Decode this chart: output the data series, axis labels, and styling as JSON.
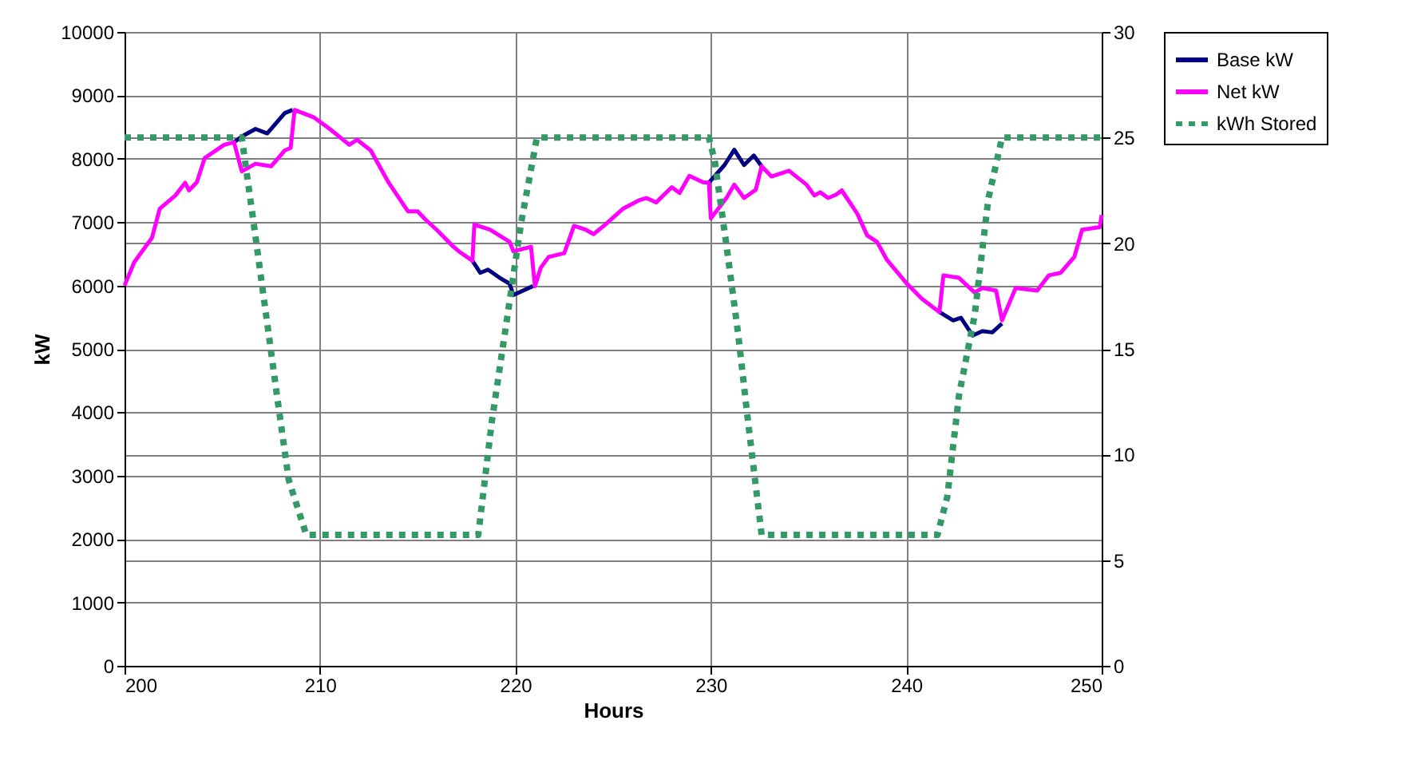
{
  "chart_data": {
    "type": "line",
    "xlabel": "Hours",
    "ylabel": "kW",
    "xlim": [
      200,
      250
    ],
    "xticks": [
      200,
      210,
      220,
      230,
      240,
      250
    ],
    "ylim": [
      0,
      10000
    ],
    "yticks": [
      0,
      1000,
      2000,
      3000,
      4000,
      5000,
      6000,
      7000,
      8000,
      9000,
      10000
    ],
    "y2lim": [
      0,
      30
    ],
    "y2ticks": [
      0,
      5,
      10,
      15,
      20,
      25,
      30
    ],
    "grid": true,
    "legend": "right",
    "marker": "none",
    "series": [
      {
        "name": "Base kW",
        "color": "#000080",
        "line_style": "solid",
        "x": [
          205.6,
          206,
          206.7,
          207.3,
          208.2,
          208.6,
          213,
          217.8,
          218.2,
          218.6,
          219.2,
          219.7,
          219.9,
          220.9,
          225,
          229.9,
          230.7,
          231.2,
          231.7,
          232.2,
          232.6,
          237,
          241.7,
          242.4,
          242.8,
          243.4,
          243.9,
          244.4,
          244.9
        ],
        "values": [
          8260,
          8350,
          8470,
          8400,
          8720,
          8770,
          null,
          6390,
          6200,
          6250,
          6120,
          6030,
          5850,
          5990,
          null,
          7620,
          7900,
          8140,
          7900,
          8050,
          7880,
          null,
          5580,
          5450,
          5490,
          5210,
          5280,
          5260,
          5400
        ]
      },
      {
        "name": "Net kW",
        "color": "#ff00ff",
        "line_style": "solid",
        "x": [
          200,
          200.5,
          201.4,
          201.8,
          202.6,
          203.1,
          203.3,
          203.7,
          204.1,
          205.1,
          205.6,
          206,
          206.7,
          207.5,
          208.2,
          208.5,
          208.7,
          209.7,
          210.5,
          211.5,
          211.9,
          212.6,
          213.5,
          214.5,
          215,
          215.4,
          216,
          216.8,
          217.1,
          217.8,
          217.9,
          218.7,
          219.7,
          219.9,
          220.8,
          221,
          221.3,
          221.7,
          222.5,
          223,
          223.6,
          224,
          224.6,
          225.5,
          226.3,
          226.7,
          227.2,
          228,
          228.4,
          228.9,
          229.6,
          229.9,
          230,
          230.8,
          231.2,
          231.7,
          232.3,
          232.6,
          233.1,
          234,
          234.9,
          235.3,
          235.6,
          236,
          236.4,
          236.7,
          237.5,
          238,
          238.5,
          239,
          240,
          240.8,
          241.7,
          241.9,
          242.7,
          243.5,
          243.9,
          244.6,
          244.9,
          245.6,
          246.7,
          247.3,
          247.9,
          248.6,
          249,
          249.9,
          250
        ],
        "values": [
          6000,
          6370,
          6750,
          7210,
          7420,
          7620,
          7500,
          7630,
          8010,
          8220,
          8260,
          7800,
          7920,
          7880,
          8130,
          8170,
          8770,
          8650,
          8470,
          8220,
          8300,
          8130,
          7630,
          7170,
          7170,
          7040,
          6870,
          6620,
          6540,
          6390,
          6960,
          6880,
          6690,
          6540,
          6610,
          5990,
          6280,
          6450,
          6510,
          6940,
          6880,
          6810,
          6960,
          7210,
          7340,
          7380,
          7310,
          7550,
          7460,
          7730,
          7630,
          7620,
          7060,
          7380,
          7590,
          7380,
          7510,
          7880,
          7720,
          7810,
          7590,
          7420,
          7470,
          7380,
          7430,
          7500,
          7130,
          6790,
          6690,
          6410,
          6040,
          5790,
          5580,
          6160,
          6120,
          5890,
          5960,
          5920,
          5450,
          5960,
          5920,
          6160,
          6200,
          6450,
          6880,
          6920,
          7110
        ]
      },
      {
        "name": "kWh Stored",
        "color": "#339966",
        "line_style": "dotted",
        "axis": "y2",
        "x": [
          200,
          206,
          206.6,
          207.8,
          208.4,
          209.3,
          218.1,
          218.8,
          219.6,
          220.3,
          221.1,
          229.9,
          230.2,
          230.8,
          231.4,
          231.9,
          232.6,
          241.6,
          242.1,
          242.7,
          243.5,
          244.2,
          244.9,
          250
        ],
        "values": [
          25,
          25,
          21,
          12.8,
          8.8,
          6.2,
          6.2,
          11.6,
          16.6,
          21,
          25,
          25,
          23.9,
          19.9,
          15.7,
          11.6,
          6.2,
          6.2,
          8,
          12.8,
          16.6,
          22.1,
          25,
          25
        ]
      }
    ]
  }
}
